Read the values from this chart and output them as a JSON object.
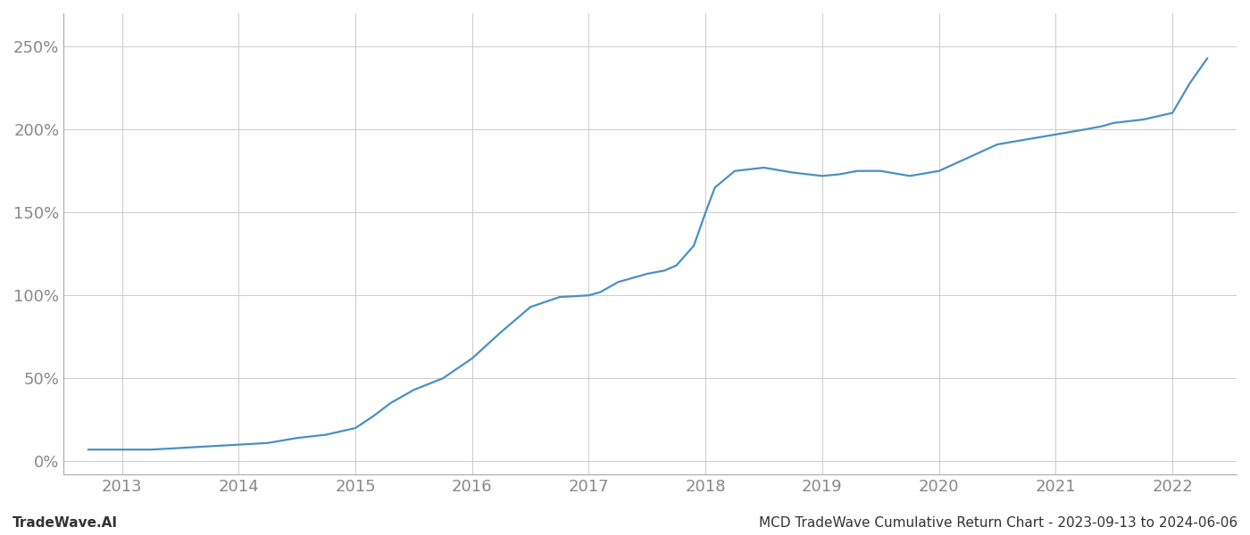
{
  "title": "",
  "footer_left": "TradeWave.AI",
  "footer_right": "MCD TradeWave Cumulative Return Chart - 2023-09-13 to 2024-06-06",
  "line_color": "#4a90c4",
  "background_color": "#ffffff",
  "grid_color": "#cccccc",
  "x_years": [
    2013,
    2014,
    2015,
    2016,
    2017,
    2018,
    2019,
    2020,
    2021,
    2022
  ],
  "x_data": [
    2012.71,
    2013.0,
    2013.25,
    2013.5,
    2013.75,
    2014.0,
    2014.25,
    2014.5,
    2014.75,
    2015.0,
    2015.15,
    2015.3,
    2015.5,
    2015.75,
    2016.0,
    2016.25,
    2016.5,
    2016.75,
    2017.0,
    2017.1,
    2017.25,
    2017.5,
    2017.65,
    2017.75,
    2017.9,
    2018.0,
    2018.08,
    2018.25,
    2018.5,
    2018.75,
    2019.0,
    2019.15,
    2019.3,
    2019.5,
    2019.75,
    2020.0,
    2020.25,
    2020.5,
    2020.75,
    2021.0,
    2021.25,
    2021.4,
    2021.5,
    2021.75,
    2022.0,
    2022.15,
    2022.3
  ],
  "y_data": [
    7,
    7,
    7,
    8,
    9,
    10,
    11,
    14,
    16,
    20,
    27,
    35,
    43,
    50,
    62,
    78,
    93,
    99,
    100,
    102,
    108,
    113,
    115,
    118,
    130,
    150,
    165,
    175,
    177,
    174,
    172,
    173,
    175,
    175,
    172,
    175,
    183,
    191,
    194,
    197,
    200,
    202,
    204,
    206,
    210,
    228,
    243
  ],
  "ylim": [
    -8,
    270
  ],
  "yticks": [
    0,
    50,
    100,
    150,
    200,
    250
  ],
  "xlim": [
    2012.5,
    2022.55
  ],
  "tick_fontsize": 13,
  "tick_color": "#888888",
  "footer_fontsize": 11,
  "line_width": 1.6
}
